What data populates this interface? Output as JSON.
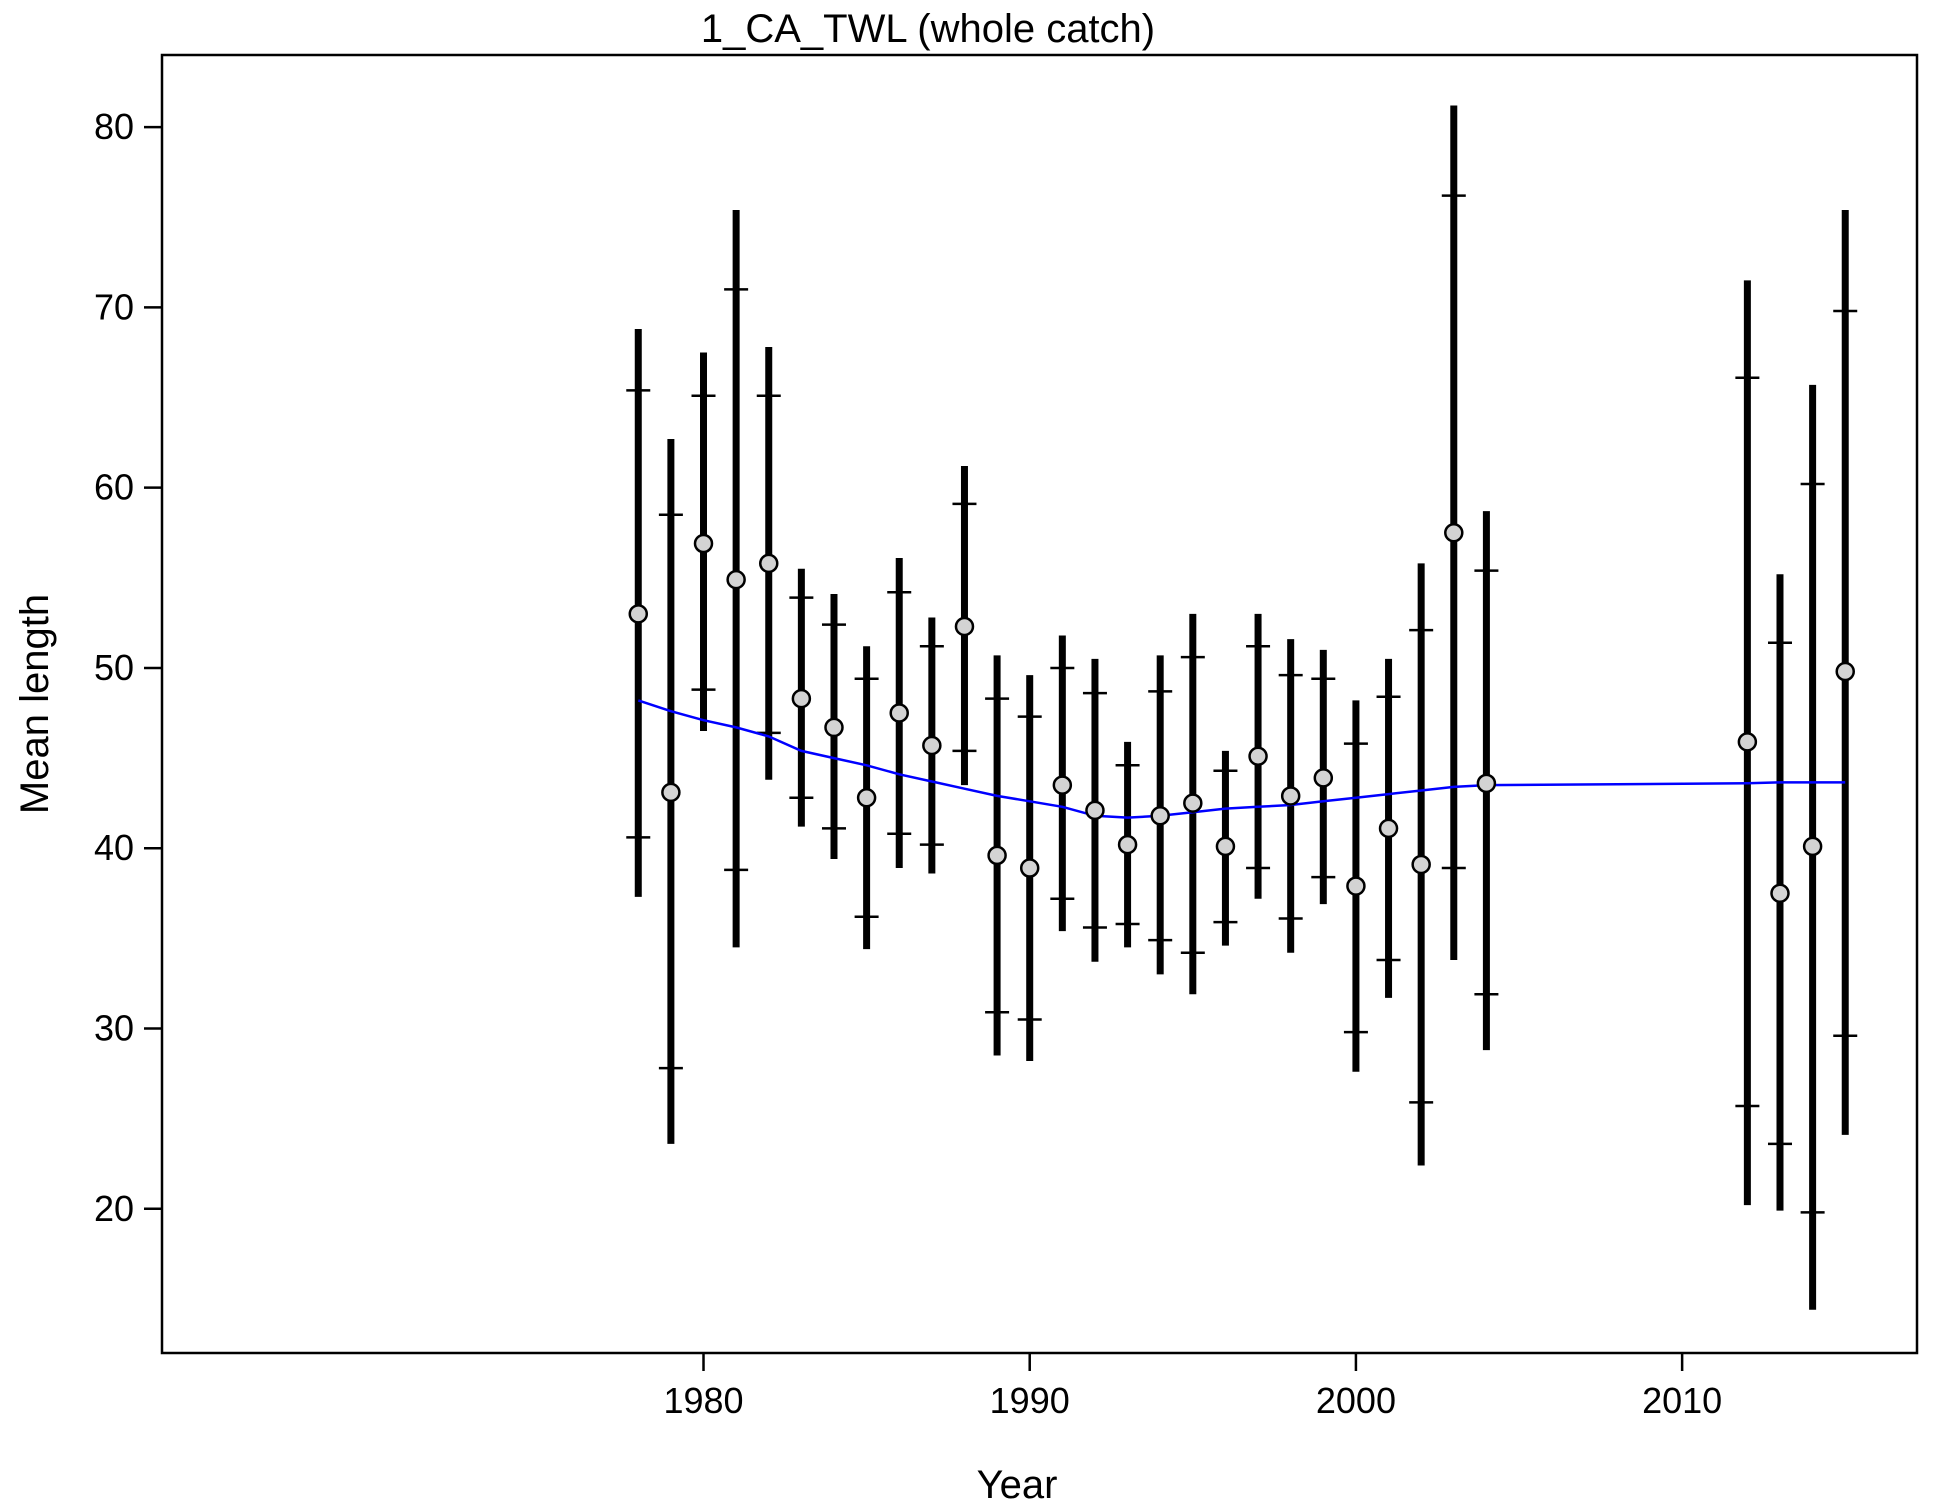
{
  "chart_data": {
    "type": "scatter",
    "title": "1_CA_TWL (whole catch)",
    "xlabel": "Year",
    "ylabel": "Mean length",
    "xlim": [
      1963.4,
      2017.2
    ],
    "ylim": [
      12.0,
      84.0
    ],
    "xticks": [
      1980,
      1990,
      2000,
      2010
    ],
    "yticks": [
      20,
      30,
      40,
      50,
      60,
      70,
      80
    ],
    "grid": false,
    "legend": "none",
    "colors": {
      "observed_fill": "#d3d3d3",
      "observed_stroke": "#000000",
      "interval": "#000000",
      "expected_line": "#0000ff"
    },
    "series": [
      {
        "kind": "observed",
        "x": [
          1978,
          1979,
          1980,
          1981,
          1982,
          1983,
          1984,
          1985,
          1986,
          1987,
          1988,
          1989,
          1990,
          1991,
          1992,
          1993,
          1994,
          1995,
          1996,
          1997,
          1998,
          1999,
          2000,
          2001,
          2002,
          2003,
          2004,
          2012,
          2013,
          2014,
          2015
        ],
        "y": [
          53.0,
          43.1,
          56.9,
          54.9,
          55.8,
          48.3,
          46.7,
          42.8,
          47.5,
          45.7,
          52.3,
          39.6,
          38.9,
          43.5,
          42.1,
          40.2,
          41.8,
          42.5,
          40.1,
          45.1,
          42.9,
          43.9,
          37.9,
          41.1,
          39.1,
          57.5,
          43.6,
          45.9,
          37.5,
          40.1,
          49.8
        ],
        "outer_low": [
          37.3,
          23.6,
          46.5,
          34.5,
          43.8,
          41.2,
          39.4,
          34.4,
          38.9,
          38.6,
          43.5,
          28.5,
          28.2,
          35.4,
          33.7,
          34.5,
          33.0,
          31.9,
          34.6,
          37.2,
          34.2,
          36.9,
          27.6,
          31.7,
          22.4,
          33.8,
          28.8,
          20.2,
          19.9,
          14.4,
          24.1
        ],
        "outer_high": [
          68.8,
          62.7,
          67.5,
          75.4,
          67.8,
          55.5,
          54.1,
          51.2,
          56.1,
          52.8,
          61.2,
          50.7,
          49.6,
          51.8,
          50.5,
          45.9,
          50.7,
          53.0,
          45.4,
          53.0,
          51.6,
          51.0,
          48.2,
          50.5,
          55.8,
          81.2,
          58.7,
          71.5,
          55.2,
          65.7,
          75.4
        ],
        "inner_low": [
          40.6,
          27.8,
          48.8,
          38.8,
          46.4,
          42.8,
          41.1,
          36.2,
          40.8,
          40.2,
          45.4,
          30.9,
          30.5,
          37.2,
          35.6,
          35.8,
          34.9,
          34.2,
          35.9,
          38.9,
          36.1,
          38.4,
          29.8,
          33.8,
          25.9,
          38.9,
          31.9,
          25.7,
          23.6,
          19.8,
          29.6
        ],
        "inner_high": [
          65.4,
          58.5,
          65.1,
          71.0,
          65.1,
          53.9,
          52.4,
          49.4,
          54.2,
          51.2,
          59.1,
          48.3,
          47.3,
          50.0,
          48.6,
          44.6,
          48.7,
          50.6,
          44.3,
          51.2,
          49.6,
          49.4,
          45.8,
          48.4,
          52.1,
          76.2,
          55.4,
          66.1,
          51.4,
          60.2,
          69.8
        ]
      },
      {
        "kind": "expected",
        "x": [
          1978,
          1979,
          1980,
          1981,
          1982,
          1983,
          1984,
          1985,
          1986,
          1987,
          1988,
          1989,
          1990,
          1991,
          1992,
          1993,
          1994,
          1995,
          1996,
          1997,
          1998,
          1999,
          2000,
          2001,
          2002,
          2003,
          2004,
          2008,
          2012,
          2013,
          2014,
          2015
        ],
        "y": [
          48.2,
          47.6,
          47.1,
          46.7,
          46.2,
          45.4,
          45.0,
          44.6,
          44.1,
          43.7,
          43.3,
          42.9,
          42.6,
          42.3,
          41.8,
          41.7,
          41.8,
          42.0,
          42.2,
          42.3,
          42.4,
          42.6,
          42.8,
          43.0,
          43.2,
          43.4,
          43.5,
          43.55,
          43.6,
          43.65,
          43.65,
          43.65
        ]
      }
    ]
  }
}
